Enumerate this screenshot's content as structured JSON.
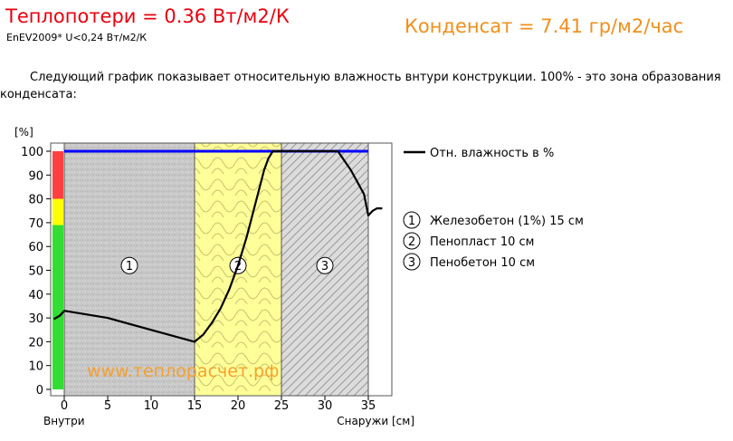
{
  "header": {
    "heat_loss": "Теплопотери = 0.36 Вт/м2/К",
    "standard": "EnEV2009* U<0,24 Вт/м2/К",
    "condensate": "Конденсат = 7.41 гр/м2/час"
  },
  "description": "Следующий график показывает относительную влажность внтури конструкции. 100% - это зона образования конденсата:",
  "colors": {
    "humidity_line": "#000000",
    "saturation_line": "#0000ff",
    "layer_concrete": "#c8c8c8",
    "layer_foam": "#ffff99",
    "layer_aerated": "#d4d4d4",
    "scale_red": "#ff4040",
    "scale_yellow": "#ffff00",
    "scale_green": "#33dd33",
    "watermark": "#f5a030"
  },
  "chart_data": {
    "type": "line",
    "ylabel": "[%]",
    "xlabel_left": "Внутри",
    "xlabel_right": "Снаружи [см]",
    "xlim": [
      -1.5,
      37
    ],
    "ylim": [
      0,
      100
    ],
    "x_ticks": [
      0,
      5,
      10,
      15,
      20,
      25,
      30,
      35
    ],
    "y_ticks": [
      0,
      10,
      20,
      30,
      40,
      50,
      60,
      70,
      80,
      90,
      100
    ],
    "layers": [
      {
        "number": "1",
        "from": 0,
        "to": 15,
        "pattern": "concrete"
      },
      {
        "number": "2",
        "from": 15,
        "to": 25,
        "pattern": "foam"
      },
      {
        "number": "3",
        "from": 25,
        "to": 35,
        "pattern": "hatch"
      }
    ],
    "humidity_scale": [
      {
        "from": 0,
        "to": 69,
        "color": "green"
      },
      {
        "from": 69,
        "to": 80,
        "color": "yellow"
      },
      {
        "from": 80,
        "to": 100,
        "color": "red"
      }
    ],
    "saturation_level": 100,
    "series": [
      {
        "name": "Отн. влажность в %",
        "x": [
          -1.2,
          -0.5,
          0,
          5,
          10,
          15,
          16,
          17,
          18,
          19,
          20,
          21,
          22,
          22.5,
          23,
          23.5,
          24,
          25,
          30,
          31.5,
          33,
          34.5,
          35,
          35.5,
          36,
          36.6
        ],
        "y": [
          29.5,
          31,
          33,
          30,
          25,
          20,
          23,
          28,
          34,
          42,
          52,
          64,
          78,
          85,
          92,
          97,
          100,
          100,
          100,
          100,
          92,
          82,
          73,
          75,
          76,
          76
        ]
      }
    ],
    "watermark": "www.теплорасчет.рф"
  },
  "legend": {
    "line_label": "Отн. влажность в %",
    "layers": [
      {
        "number": "1",
        "label": "Железобетон (1%) 15 см"
      },
      {
        "number": "2",
        "label": "Пенопласт 10 см"
      },
      {
        "number": "3",
        "label": "Пенобетон 10 см"
      }
    ]
  }
}
